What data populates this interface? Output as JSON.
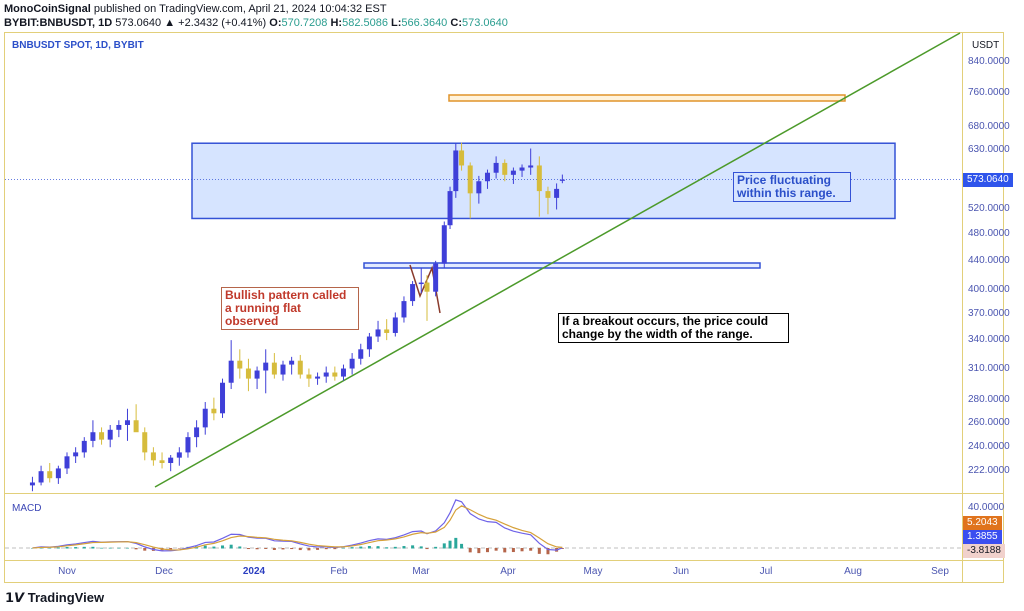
{
  "header": {
    "publisher": "MonoCoinSignal",
    "published": "published on TradingView.com, April 21, 2024 10:04:32 EST",
    "symbol": "BYBIT:BNBUSDT, 1D",
    "last": "573.0640",
    "change": "▲ +2.3432 (+0.41%)",
    "o_label": "O:",
    "o": "570.7208",
    "h_label": "H:",
    "h": "582.5086",
    "l_label": "L:",
    "l": "566.3640",
    "c_label": "C:",
    "c": "573.0640"
  },
  "legend": "BNBUSDT SPOT, 1D, BYBIT",
  "macd_label": "MACD",
  "currency": "USDT",
  "price_tag": "573.0640",
  "macd_tags": {
    "axis": "40.0000",
    "signal": "5.2043",
    "macd": "1.3855",
    "hist": "-3.8188"
  },
  "annotations": {
    "bullish": "Bullish pattern called a running flat observed",
    "range": "Price fluctuating within this range.",
    "breakout": "If a breakout occurs, the price could change by the width of the range."
  },
  "brand": "TradingView",
  "colors": {
    "up": "#3f3fd8",
    "down": "#d6bc3c",
    "range_box": "#3452d6",
    "target_box": "#e0942a",
    "trendline": "#4c9a2a",
    "macd": "#6f63e8",
    "signal": "#d6a13a",
    "hist_up": "#2aa79b",
    "hist_down": "#b5654a",
    "note_red": "#c0392b"
  },
  "chart_data": {
    "type": "candlestick",
    "scale": "log",
    "title": "BNBUSDT SPOT, 1D, BYBIT",
    "ylabel": "USDT",
    "ylim": [
      205,
      900
    ],
    "y_ticks": [
      "840.0000",
      "760.0000",
      "680.0000",
      "630.0000",
      "520.0000",
      "480.0000",
      "440.0000",
      "400.0000",
      "370.0000",
      "340.0000",
      "310.0000",
      "280.0000",
      "260.0000",
      "240.0000",
      "222.0000"
    ],
    "x_ticks": [
      "Nov",
      "Dec",
      "2024",
      "Feb",
      "Mar",
      "Apr",
      "May",
      "Jun",
      "Jul",
      "Aug",
      "Sep"
    ],
    "xlim": [
      "2023-10-19",
      "2024-09-18"
    ],
    "candles": [
      [
        "2023-10-20",
        212,
        218,
        208,
        214
      ],
      [
        "2023-10-23",
        214,
        226,
        212,
        222
      ],
      [
        "2023-10-26",
        222,
        228,
        214,
        217
      ],
      [
        "2023-10-29",
        217,
        226,
        213,
        224
      ],
      [
        "2023-11-01",
        224,
        236,
        220,
        233
      ],
      [
        "2023-11-04",
        233,
        240,
        228,
        236
      ],
      [
        "2023-11-07",
        236,
        248,
        232,
        245
      ],
      [
        "2023-11-10",
        245,
        262,
        240,
        252
      ],
      [
        "2023-11-13",
        252,
        256,
        242,
        246
      ],
      [
        "2023-11-16",
        246,
        258,
        240,
        254
      ],
      [
        "2023-11-19",
        254,
        262,
        248,
        258
      ],
      [
        "2023-11-22",
        258,
        272,
        245,
        262
      ],
      [
        "2023-11-25",
        262,
        276,
        255,
        252
      ],
      [
        "2023-11-28",
        252,
        256,
        230,
        236
      ],
      [
        "2023-12-01",
        236,
        240,
        226,
        230
      ],
      [
        "2023-12-04",
        230,
        236,
        224,
        228
      ],
      [
        "2023-12-07",
        228,
        234,
        222,
        232
      ],
      [
        "2023-12-10",
        232,
        240,
        226,
        236
      ],
      [
        "2023-12-13",
        236,
        252,
        232,
        248
      ],
      [
        "2023-12-16",
        248,
        262,
        240,
        256
      ],
      [
        "2023-12-19",
        256,
        278,
        250,
        272
      ],
      [
        "2023-12-22",
        272,
        282,
        262,
        268
      ],
      [
        "2023-12-25",
        268,
        300,
        264,
        296
      ],
      [
        "2023-12-28",
        296,
        340,
        290,
        318
      ],
      [
        "2023-12-31",
        318,
        330,
        300,
        310
      ],
      [
        "2024-01-03",
        310,
        320,
        288,
        300
      ],
      [
        "2024-01-06",
        300,
        312,
        290,
        308
      ],
      [
        "2024-01-09",
        308,
        330,
        286,
        316
      ],
      [
        "2024-01-12",
        316,
        326,
        300,
        304
      ],
      [
        "2024-01-15",
        304,
        318,
        298,
        314
      ],
      [
        "2024-01-18",
        314,
        322,
        304,
        318
      ],
      [
        "2024-01-21",
        318,
        324,
        300,
        304
      ],
      [
        "2024-01-24",
        304,
        310,
        292,
        300
      ],
      [
        "2024-01-27",
        300,
        306,
        294,
        302
      ],
      [
        "2024-01-30",
        302,
        312,
        296,
        306
      ],
      [
        "2024-02-02",
        306,
        312,
        298,
        302
      ],
      [
        "2024-02-05",
        302,
        314,
        298,
        310
      ],
      [
        "2024-02-08",
        310,
        326,
        304,
        320
      ],
      [
        "2024-02-11",
        320,
        336,
        314,
        330
      ],
      [
        "2024-02-14",
        330,
        348,
        322,
        344
      ],
      [
        "2024-02-17",
        344,
        362,
        338,
        352
      ],
      [
        "2024-02-20",
        352,
        364,
        340,
        348
      ],
      [
        "2024-02-23",
        348,
        372,
        344,
        366
      ],
      [
        "2024-02-26",
        366,
        392,
        360,
        386
      ],
      [
        "2024-02-29",
        386,
        412,
        380,
        408
      ],
      [
        "2024-03-03",
        408,
        430,
        396,
        410
      ],
      [
        "2024-03-05",
        410,
        420,
        362,
        398
      ],
      [
        "2024-03-08",
        398,
        440,
        392,
        436
      ],
      [
        "2024-03-11",
        436,
        500,
        430,
        494
      ],
      [
        "2024-03-13",
        494,
        560,
        488,
        552
      ],
      [
        "2024-03-15",
        552,
        645,
        540,
        630
      ],
      [
        "2024-03-17",
        630,
        646,
        590,
        600
      ],
      [
        "2024-03-20",
        600,
        606,
        505,
        548
      ],
      [
        "2024-03-23",
        548,
        580,
        530,
        570
      ],
      [
        "2024-03-26",
        570,
        592,
        556,
        586
      ],
      [
        "2024-03-29",
        586,
        618,
        575,
        605
      ],
      [
        "2024-04-01",
        605,
        612,
        570,
        582
      ],
      [
        "2024-04-04",
        582,
        596,
        565,
        590
      ],
      [
        "2024-04-07",
        590,
        602,
        578,
        596
      ],
      [
        "2024-04-10",
        596,
        634,
        582,
        600
      ],
      [
        "2024-04-13",
        600,
        618,
        508,
        552
      ],
      [
        "2024-04-16",
        552,
        560,
        512,
        540
      ],
      [
        "2024-04-19",
        540,
        566,
        520,
        556
      ],
      [
        "2024-04-21",
        570.7208,
        582.5086,
        566.364,
        573.064
      ]
    ],
    "macd_last": {
      "macd": 1.3855,
      "signal": 5.2043,
      "histogram": -3.8188
    }
  }
}
